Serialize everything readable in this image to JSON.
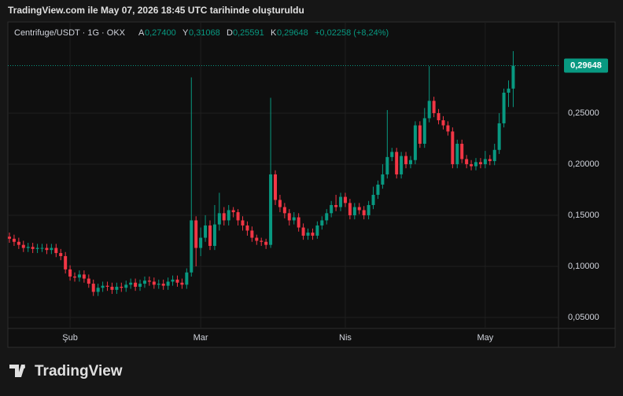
{
  "header": {
    "title": "TradingView.com ile May 07, 2026 18:45 UTC tarihinde oluşturuldu"
  },
  "legend": {
    "symbol": "Centrifuge/USDT · 1G · OKX",
    "open_key": "A",
    "open": "0,27400",
    "high_key": "Y",
    "high": "0,31068",
    "low_key": "D",
    "low": "0,25591",
    "close_key": "K",
    "close": "0,29648",
    "change": "+0,02258 (+8,24%)"
  },
  "last_price_label": "0,29648",
  "logo": "TradingView",
  "chart_data": {
    "type": "candlestick",
    "up_color": "#089981",
    "down_color": "#f23645",
    "grid": true,
    "categories": [
      null,
      null,
      null,
      null,
      null,
      null,
      null,
      null,
      null,
      null,
      null,
      null,
      null,
      "Şub",
      null,
      null,
      null,
      null,
      null,
      null,
      null,
      null,
      null,
      null,
      null,
      null,
      null,
      null,
      null,
      null,
      null,
      null,
      null,
      null,
      null,
      null,
      null,
      null,
      null,
      null,
      null,
      "Mar",
      null,
      null,
      null,
      null,
      null,
      null,
      null,
      null,
      null,
      null,
      null,
      null,
      null,
      null,
      null,
      null,
      null,
      null,
      null,
      null,
      null,
      null,
      null,
      null,
      null,
      null,
      null,
      null,
      null,
      null,
      "Nis",
      null,
      null,
      null,
      null,
      null,
      null,
      null,
      null,
      null,
      null,
      null,
      null,
      null,
      null,
      null,
      null,
      null,
      null,
      null,
      null,
      null,
      null,
      null,
      null,
      null,
      null,
      null,
      null,
      null,
      "May",
      null,
      null,
      null,
      null,
      null,
      null
    ],
    "open": [
      0.129,
      0.127,
      0.124,
      0.121,
      0.118,
      0.119,
      0.117,
      0.118,
      0.118,
      0.116,
      0.118,
      0.113,
      0.11,
      0.097,
      0.09,
      0.089,
      0.092,
      0.088,
      0.083,
      0.075,
      0.079,
      0.081,
      0.08,
      0.077,
      0.08,
      0.079,
      0.082,
      0.084,
      0.08,
      0.083,
      0.086,
      0.085,
      0.082,
      0.083,
      0.081,
      0.085,
      0.087,
      0.084,
      0.082,
      0.094,
      0.145,
      0.118,
      0.128,
      0.14,
      0.12,
      0.141,
      0.152,
      0.145,
      0.155,
      0.153,
      0.145,
      0.14,
      0.135,
      0.128,
      0.125,
      0.124,
      0.121,
      0.19,
      0.165,
      0.158,
      0.152,
      0.145,
      0.148,
      0.138,
      0.13,
      0.133,
      0.13,
      0.14,
      0.145,
      0.152,
      0.16,
      0.158,
      0.168,
      0.162,
      0.15,
      0.158,
      0.155,
      0.15,
      0.16,
      0.17,
      0.18,
      0.19,
      0.207,
      0.212,
      0.19,
      0.208,
      0.2,
      0.204,
      0.238,
      0.22,
      0.245,
      0.262,
      0.25,
      0.243,
      0.238,
      0.232,
      0.2,
      0.22,
      0.205,
      0.2,
      0.198,
      0.202,
      0.2,
      0.205,
      0.203,
      0.214,
      0.24,
      0.27,
      0.274
    ],
    "high": [
      0.133,
      0.131,
      0.128,
      0.125,
      0.123,
      0.123,
      0.122,
      0.122,
      0.122,
      0.122,
      0.122,
      0.117,
      0.114,
      0.101,
      0.094,
      0.096,
      0.096,
      0.092,
      0.087,
      0.083,
      0.085,
      0.085,
      0.084,
      0.084,
      0.084,
      0.086,
      0.088,
      0.088,
      0.087,
      0.09,
      0.09,
      0.089,
      0.087,
      0.087,
      0.089,
      0.091,
      0.091,
      0.088,
      0.098,
      0.285,
      0.149,
      0.138,
      0.15,
      0.145,
      0.16,
      0.172,
      0.158,
      0.16,
      0.158,
      0.156,
      0.149,
      0.144,
      0.139,
      0.131,
      0.128,
      0.127,
      0.265,
      0.194,
      0.17,
      0.162,
      0.156,
      0.153,
      0.152,
      0.142,
      0.137,
      0.137,
      0.144,
      0.149,
      0.156,
      0.164,
      0.17,
      0.172,
      0.172,
      0.166,
      0.162,
      0.162,
      0.159,
      0.164,
      0.178,
      0.184,
      0.2,
      0.253,
      0.216,
      0.216,
      0.212,
      0.212,
      0.208,
      0.242,
      0.242,
      0.255,
      0.296,
      0.266,
      0.254,
      0.247,
      0.242,
      0.236,
      0.224,
      0.224,
      0.209,
      0.204,
      0.206,
      0.206,
      0.213,
      0.209,
      0.22,
      0.25,
      0.274,
      0.282,
      0.31068
    ],
    "low": [
      0.123,
      0.12,
      0.117,
      0.114,
      0.114,
      0.113,
      0.113,
      0.114,
      0.112,
      0.112,
      0.109,
      0.106,
      0.093,
      0.086,
      0.085,
      0.085,
      0.084,
      0.079,
      0.071,
      0.071,
      0.075,
      0.076,
      0.073,
      0.073,
      0.075,
      0.075,
      0.078,
      0.076,
      0.076,
      0.079,
      0.081,
      0.078,
      0.078,
      0.077,
      0.077,
      0.081,
      0.08,
      0.078,
      0.078,
      0.09,
      0.1,
      0.11,
      0.124,
      0.116,
      0.116,
      0.135,
      0.14,
      0.14,
      0.148,
      0.14,
      0.135,
      0.13,
      0.124,
      0.121,
      0.12,
      0.117,
      0.118,
      0.16,
      0.153,
      0.147,
      0.14,
      0.141,
      0.134,
      0.126,
      0.126,
      0.126,
      0.127,
      0.136,
      0.141,
      0.148,
      0.154,
      0.154,
      0.158,
      0.146,
      0.146,
      0.151,
      0.146,
      0.146,
      0.156,
      0.166,
      0.176,
      0.186,
      0.203,
      0.186,
      0.186,
      0.196,
      0.196,
      0.2,
      0.216,
      0.216,
      0.241,
      0.246,
      0.239,
      0.234,
      0.228,
      0.196,
      0.196,
      0.201,
      0.196,
      0.194,
      0.194,
      0.196,
      0.196,
      0.199,
      0.199,
      0.21,
      0.236,
      0.256,
      0.25591
    ],
    "close": [
      0.127,
      0.124,
      0.121,
      0.118,
      0.119,
      0.117,
      0.118,
      0.118,
      0.116,
      0.118,
      0.113,
      0.11,
      0.097,
      0.09,
      0.089,
      0.092,
      0.088,
      0.083,
      0.075,
      0.079,
      0.081,
      0.08,
      0.077,
      0.08,
      0.079,
      0.082,
      0.084,
      0.08,
      0.083,
      0.086,
      0.085,
      0.082,
      0.083,
      0.081,
      0.085,
      0.087,
      0.084,
      0.082,
      0.094,
      0.145,
      0.118,
      0.128,
      0.14,
      0.12,
      0.141,
      0.152,
      0.145,
      0.155,
      0.153,
      0.145,
      0.14,
      0.135,
      0.128,
      0.125,
      0.124,
      0.121,
      0.19,
      0.165,
      0.158,
      0.152,
      0.145,
      0.148,
      0.138,
      0.13,
      0.133,
      0.13,
      0.14,
      0.145,
      0.152,
      0.16,
      0.158,
      0.168,
      0.162,
      0.15,
      0.158,
      0.155,
      0.15,
      0.16,
      0.17,
      0.18,
      0.19,
      0.207,
      0.212,
      0.19,
      0.208,
      0.2,
      0.204,
      0.238,
      0.22,
      0.245,
      0.262,
      0.25,
      0.243,
      0.238,
      0.232,
      0.2,
      0.22,
      0.205,
      0.2,
      0.198,
      0.202,
      0.2,
      0.205,
      0.203,
      0.214,
      0.24,
      0.27,
      0.274,
      0.29648
    ],
    "ylim": [
      0.0392,
      0.3392
    ],
    "yticks": [
      {
        "value": 0.05,
        "label": "0,05000"
      },
      {
        "value": 0.1,
        "label": "0,10000"
      },
      {
        "value": 0.15,
        "label": "0,15000"
      },
      {
        "value": 0.2,
        "label": "0,20000"
      },
      {
        "value": 0.25,
        "label": "0,25000"
      }
    ]
  }
}
